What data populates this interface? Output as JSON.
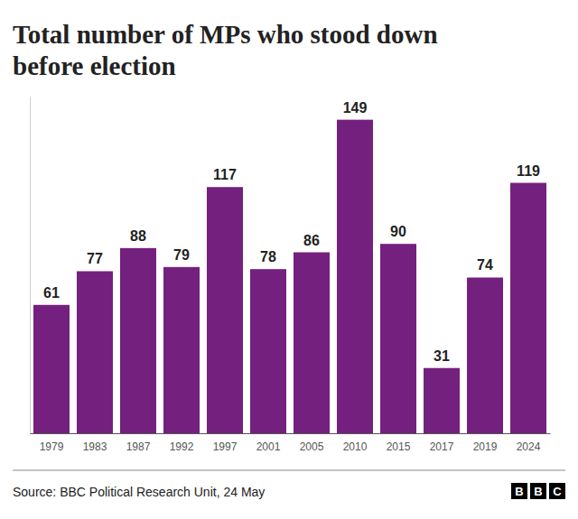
{
  "chart_data": {
    "type": "bar",
    "title": "Total number of MPs who stood down before election",
    "categories": [
      "1979",
      "1983",
      "1987",
      "1992",
      "1997",
      "2001",
      "2005",
      "2010",
      "2015",
      "2017",
      "2019",
      "2024"
    ],
    "values": [
      61,
      77,
      88,
      79,
      117,
      78,
      86,
      149,
      90,
      31,
      74,
      119
    ],
    "color": "#74207e",
    "ylim": [
      0,
      160
    ],
    "data_labels": true,
    "tick_labels": "x",
    "grid": false,
    "source": "Source: BBC Political Research Unit, 24 May",
    "logo": "BBC"
  }
}
